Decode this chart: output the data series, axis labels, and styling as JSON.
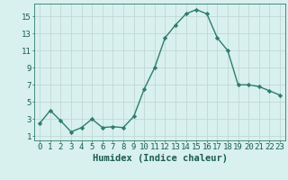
{
  "x": [
    0,
    1,
    2,
    3,
    4,
    5,
    6,
    7,
    8,
    9,
    10,
    11,
    12,
    13,
    14,
    15,
    16,
    17,
    18,
    19,
    20,
    21,
    22,
    23
  ],
  "y": [
    2.5,
    4.0,
    2.8,
    1.5,
    2.0,
    3.0,
    2.0,
    2.1,
    2.0,
    3.3,
    6.5,
    9.0,
    12.5,
    14.0,
    15.3,
    15.8,
    15.3,
    12.5,
    11.0,
    7.0,
    7.0,
    6.8,
    6.3,
    5.8
  ],
  "xlabel": "Humidex (Indice chaleur)",
  "line_color": "#2e7d6e",
  "marker": "D",
  "marker_size": 2.2,
  "line_width": 1.0,
  "background_color": "#d8f0ee",
  "grid_color": "#c2d8d4",
  "text_color": "#1a5c50",
  "yticks": [
    1,
    3,
    5,
    7,
    9,
    11,
    13,
    15
  ],
  "xtick_labels": [
    "0",
    "1",
    "2",
    "3",
    "4",
    "5",
    "6",
    "7",
    "8",
    "9",
    "10",
    "11",
    "12",
    "13",
    "14",
    "15",
    "16",
    "17",
    "18",
    "19",
    "20",
    "21",
    "22",
    "23"
  ],
  "ylim": [
    0.5,
    16.5
  ],
  "xlim": [
    -0.5,
    23.5
  ],
  "tick_fontsize": 6.5,
  "xlabel_fontsize": 7.5
}
